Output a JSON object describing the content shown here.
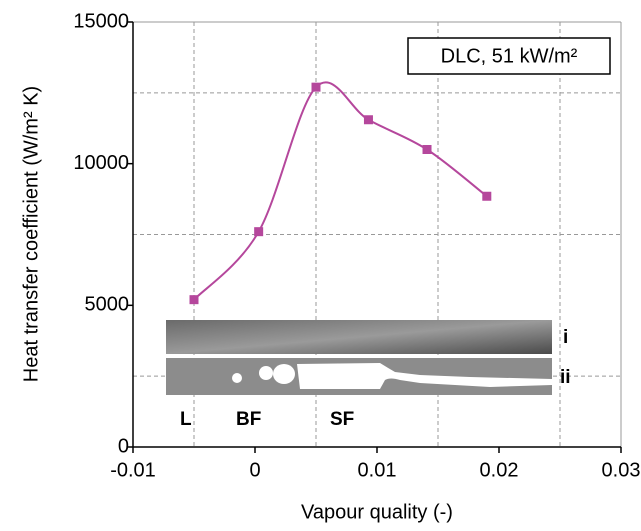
{
  "chart_data": {
    "type": "line",
    "xlabel": "Vapour quality (-)",
    "ylabel": "Heat transfer coefficient (W/m² K)",
    "annotation": "DLC, 51 kW/m²",
    "image_labels": {
      "i": "i",
      "ii": "ii",
      "L": "L",
      "BF": "BF",
      "SF": "SF"
    },
    "x": [
      -0.005,
      0.0003,
      0.005,
      0.0093,
      0.0141,
      0.019
    ],
    "series": [
      {
        "name": "DLC, 51 kW/m²",
        "color": "#b5479c",
        "values": [
          5200,
          7600,
          12700,
          11550,
          10500,
          8850
        ]
      }
    ],
    "xlim": [
      -0.01,
      0.03
    ],
    "xticks": [
      -0.01,
      0,
      0.01,
      0.02,
      0.03
    ],
    "ylim": [
      0,
      15000
    ],
    "yticks": [
      0,
      5000,
      10000,
      15000
    ],
    "xgrid": [
      -0.005,
      0.005,
      0.015,
      0.025
    ],
    "ygrid": [
      2500,
      7500,
      12500
    ]
  }
}
